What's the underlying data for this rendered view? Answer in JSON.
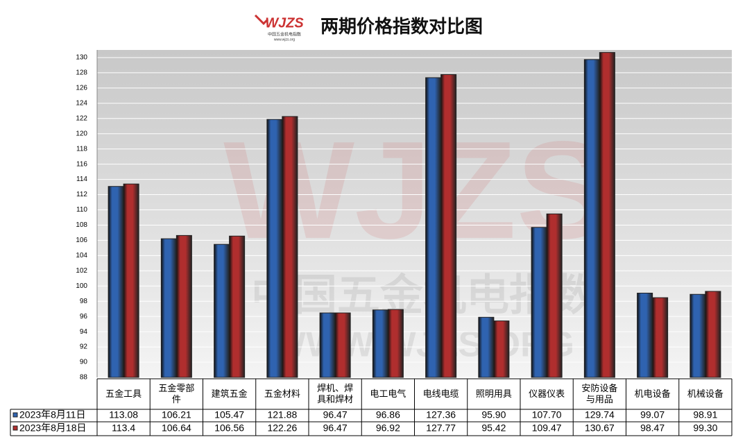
{
  "header": {
    "logo": "WJZS",
    "logo_sub": "中国五金机电指数",
    "logo_url": "www.wjzs.org"
  },
  "watermark": {
    "line1": "中国五金机电指数",
    "line2": "WWW.WJZS.ORG"
  },
  "chart_data": {
    "type": "bar",
    "title": "两期价格指数对比图",
    "categories": [
      "五金工具",
      "五金零部件",
      "建筑五金",
      "五金材料",
      "焊机、焊具和焊材",
      "电工电气",
      "电线电缆",
      "照明用具",
      "仪器仪表",
      "安防设备与用品",
      "机电设备",
      "机械设备"
    ],
    "series": [
      {
        "name": "2023年8月11日",
        "color": "#2f63b0",
        "values": [
          113.08,
          106.21,
          105.47,
          121.88,
          96.47,
          96.86,
          127.36,
          95.9,
          107.7,
          129.74,
          99.07,
          98.91
        ],
        "value_labels": [
          "113.08",
          "106.21",
          "105.47",
          "121.88",
          "96.47",
          "96.86",
          "127.36",
          "95.90",
          "107.70",
          "129.74",
          "99.07",
          "98.91"
        ]
      },
      {
        "name": "2023年8月18日",
        "color": "#b02e2e",
        "values": [
          113.4,
          106.64,
          106.56,
          122.26,
          96.47,
          96.92,
          127.77,
          95.42,
          109.47,
          130.67,
          98.47,
          99.3
        ],
        "value_labels": [
          "113.4",
          "106.64",
          "106.56",
          "122.26",
          "96.47",
          "96.92",
          "127.77",
          "95.42",
          "109.47",
          "130.67",
          "98.47",
          "99.30"
        ]
      }
    ],
    "ylim": [
      88,
      131
    ],
    "yticks": [
      88,
      90,
      92,
      94,
      96,
      98,
      100,
      102,
      104,
      106,
      108,
      110,
      112,
      114,
      116,
      118,
      120,
      122,
      124,
      126,
      128,
      130
    ],
    "grid": true
  }
}
